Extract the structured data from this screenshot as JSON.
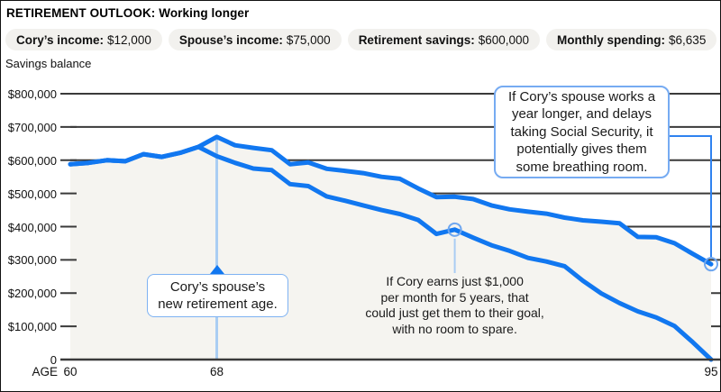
{
  "header": {
    "title": "RETIREMENT OUTLOOK: Working longer"
  },
  "pills": [
    {
      "label": "Cory’s income:",
      "value": "$12,000"
    },
    {
      "label": "Spouse’s income:",
      "value": "$75,000"
    },
    {
      "label": "Retirement savings:",
      "value": "$600,000"
    },
    {
      "label": "Monthly spending:",
      "value": "$6,635"
    }
  ],
  "chart_data": {
    "type": "line",
    "title": "Savings balance",
    "ylabel": "Savings balance",
    "xlabel": "AGE",
    "grid": true,
    "legend": "none",
    "x_range": [
      60,
      95
    ],
    "ylim": [
      0,
      800000
    ],
    "x": [
      60,
      61,
      62,
      63,
      64,
      65,
      66,
      67,
      68,
      69,
      70,
      71,
      72,
      73,
      74,
      75,
      76,
      77,
      78,
      79,
      80,
      81,
      82,
      83,
      84,
      85,
      86,
      87,
      88,
      89,
      90,
      91,
      92,
      93,
      94,
      95
    ],
    "series": [
      {
        "name": "upper_line_spouse_works_longer",
        "color": "#1177F0",
        "values": [
          588000,
          592000,
          600000,
          597000,
          618000,
          610000,
          622000,
          640000,
          670000,
          645000,
          637000,
          630000,
          588000,
          593000,
          574000,
          568000,
          561000,
          550000,
          544000,
          515000,
          489000,
          490000,
          483000,
          464000,
          452000,
          445000,
          439000,
          427000,
          419000,
          415000,
          410000,
          369000,
          368000,
          350000,
          318000,
          287000
        ]
      },
      {
        "name": "lower_line_current_plan",
        "color": "#1177F0",
        "values": [
          588000,
          592000,
          600000,
          597000,
          618000,
          610000,
          622000,
          640000,
          612000,
          592000,
          575000,
          570000,
          528000,
          522000,
          491000,
          478000,
          464000,
          450000,
          438000,
          420000,
          378000,
          391000,
          367000,
          344000,
          327000,
          306000,
          295000,
          281000,
          237000,
          199000,
          170000,
          145000,
          127000,
          101000,
          52000,
          0
        ]
      }
    ],
    "yticks": [
      {
        "value": 800000,
        "label": "$800,000"
      },
      {
        "value": 700000,
        "label": "$700,000"
      },
      {
        "value": 600000,
        "label": "$600,000"
      },
      {
        "value": 500000,
        "label": "$500,000"
      },
      {
        "value": 400000,
        "label": "$400,000"
      },
      {
        "value": 300000,
        "label": "$300,000"
      },
      {
        "value": 200000,
        "label": "$200,000"
      },
      {
        "value": 100000,
        "label": "$100,000"
      },
      {
        "value": 0,
        "label": "0"
      }
    ],
    "xticks": [
      {
        "value": 60,
        "label": "60"
      },
      {
        "value": 68,
        "label": "68"
      },
      {
        "value": 95,
        "label": "95"
      }
    ],
    "reference_line_age": 68,
    "markers": [
      {
        "series": 1,
        "age": 81,
        "value": 391000
      },
      {
        "series": 0,
        "age": 95,
        "value": 287000
      }
    ]
  },
  "annotations": {
    "retirement_age": {
      "lines": [
        "Cory’s spouse’s",
        "new retirement age."
      ]
    },
    "earnings": {
      "lines": [
        "If Cory earns just $1,000",
        "per month for 5 years, that",
        "could just get them to their goal,",
        "with no room to spare."
      ]
    },
    "breathing_room": {
      "lines": [
        "If Cory’s spouse works a",
        "year longer, and delays",
        "taking Social Security, it",
        "potentially gives them",
        "some breathing room."
      ]
    }
  },
  "colors": {
    "line_blue": "#1177F0",
    "fill_beige": "#F5F4F0",
    "grid_dark": "#3A3A3A",
    "connector_light_blue": "#A9CDF3",
    "connector_blue": "#2F82F0",
    "marker_ring": "#6FA7EF",
    "callout_border": "#7EB2F2",
    "pill_bg": "#F2F1EE"
  }
}
